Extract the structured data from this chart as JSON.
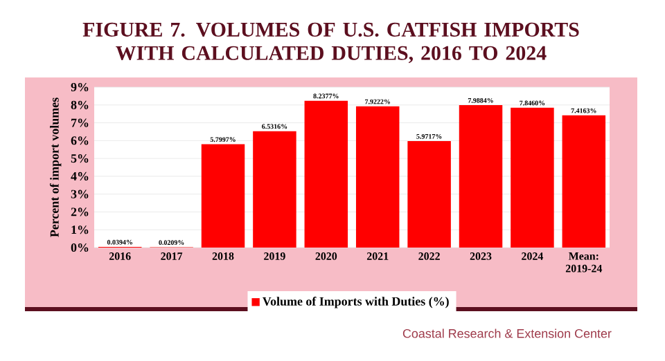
{
  "chart_data": {
    "type": "bar",
    "title": "FIGURE 7. VOLUMES OF U.S. CATFISH IMPORTS WITH CALCULATED DUTIES, 2016 TO 2024",
    "ylabel": "Percent of import volumes",
    "categories": [
      "2016",
      "2017",
      "2018",
      "2019",
      "2020",
      "2021",
      "2022",
      "2023",
      "2024",
      "Mean: 2019-24"
    ],
    "series": [
      {
        "name": "Volume of Imports with Duties (%)",
        "color": "#ff0000",
        "values": [
          0.0394,
          0.0209,
          5.7997,
          6.5316,
          8.2377,
          7.9222,
          5.9717,
          7.9884,
          7.846,
          7.4163
        ],
        "value_labels": [
          "0.0394%",
          "0.0209%",
          "5.7997%",
          "6.5316%",
          "8.2377%",
          "7.9222%",
          "5.9717%",
          "7.9884%",
          "7.8460%",
          "7.4163%"
        ]
      }
    ],
    "ylim": [
      0,
      9
    ],
    "yticks": [
      {
        "value": 0,
        "label": "0%"
      },
      {
        "value": 1,
        "label": "1%"
      },
      {
        "value": 2,
        "label": "2%"
      },
      {
        "value": 3,
        "label": "3%"
      },
      {
        "value": 4,
        "label": "4%"
      },
      {
        "value": 5,
        "label": "5%"
      },
      {
        "value": 6,
        "label": "6%"
      },
      {
        "value": 7,
        "label": "7%"
      },
      {
        "value": 8,
        "label": "8%"
      },
      {
        "value": 9,
        "label": "9%"
      }
    ],
    "grid": "y",
    "legend": "bottom",
    "annotations": [
      "Coastal Research & Extension Center"
    ]
  }
}
